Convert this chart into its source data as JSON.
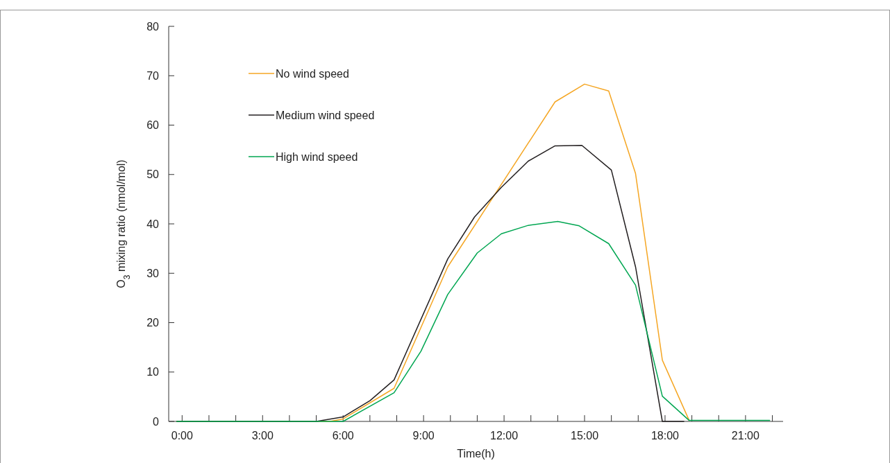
{
  "chart_data": {
    "type": "line",
    "xlabel": "Time(h)",
    "ylabel": "O$_{3}$ mixing ratio (nmol/mol)",
    "xlim": [
      -0.5,
      22.4
    ],
    "ylim": [
      0,
      80
    ],
    "xticks": [
      {
        "value": 0,
        "label": "0:00"
      },
      {
        "value": 1,
        "label": null
      },
      {
        "value": 2,
        "label": null
      },
      {
        "value": 3,
        "label": "3:00"
      },
      {
        "value": 4,
        "label": null
      },
      {
        "value": 5,
        "label": null
      },
      {
        "value": 6,
        "label": "6:00"
      },
      {
        "value": 7,
        "label": null
      },
      {
        "value": 8,
        "label": null
      },
      {
        "value": 9,
        "label": "9:00"
      },
      {
        "value": 10,
        "label": null
      },
      {
        "value": 11,
        "label": null
      },
      {
        "value": 12,
        "label": "12:00"
      },
      {
        "value": 13,
        "label": null
      },
      {
        "value": 14,
        "label": null
      },
      {
        "value": 15,
        "label": "15:00"
      },
      {
        "value": 16,
        "label": null
      },
      {
        "value": 17,
        "label": null
      },
      {
        "value": 18,
        "label": "18:00"
      },
      {
        "value": 19,
        "label": null
      },
      {
        "value": 20,
        "label": null
      },
      {
        "value": 21,
        "label": "21:00"
      },
      {
        "value": 22,
        "label": null
      }
    ],
    "yticks": [
      0,
      10,
      20,
      30,
      40,
      50,
      60,
      70,
      80
    ],
    "grid": false,
    "legend": "top left",
    "marker": "none",
    "line_style": "solid",
    "series": [
      {
        "name": "No wind speed",
        "color": "#f5a623",
        "x": [
          -0.2,
          5.5,
          6.0,
          7.9,
          9.9,
          13.9,
          15.0,
          15.9,
          16.9,
          17.9,
          18.9
        ],
        "values": [
          0,
          0,
          0.5,
          6.7,
          31.3,
          64.7,
          68.3,
          66.9,
          50.2,
          12.4,
          0.2
        ]
      },
      {
        "name": "Medium wind speed",
        "color": "#231f20",
        "x": [
          -0.2,
          5.0,
          6.0,
          7.0,
          7.9,
          9.9,
          10.9,
          11.9,
          12.9,
          13.9,
          14.9,
          16.0,
          16.9,
          17.9,
          18.7
        ],
        "values": [
          0,
          0,
          0.9,
          4.2,
          8.4,
          32.9,
          41.4,
          47.4,
          52.7,
          55.8,
          55.9,
          50.9,
          31.3,
          0,
          0
        ]
      },
      {
        "name": "High wind speed",
        "color": "#00a651",
        "x": [
          -0.2,
          6.0,
          7.9,
          8.9,
          9.9,
          11.0,
          11.9,
          12.9,
          14.0,
          14.8,
          15.9,
          16.9,
          17.9,
          18.9,
          21.9
        ],
        "values": [
          0,
          0,
          5.8,
          14.2,
          25.7,
          34.1,
          38.0,
          39.7,
          40.5,
          39.6,
          36.0,
          27.6,
          5.1,
          0.2,
          0.2
        ]
      }
    ]
  }
}
